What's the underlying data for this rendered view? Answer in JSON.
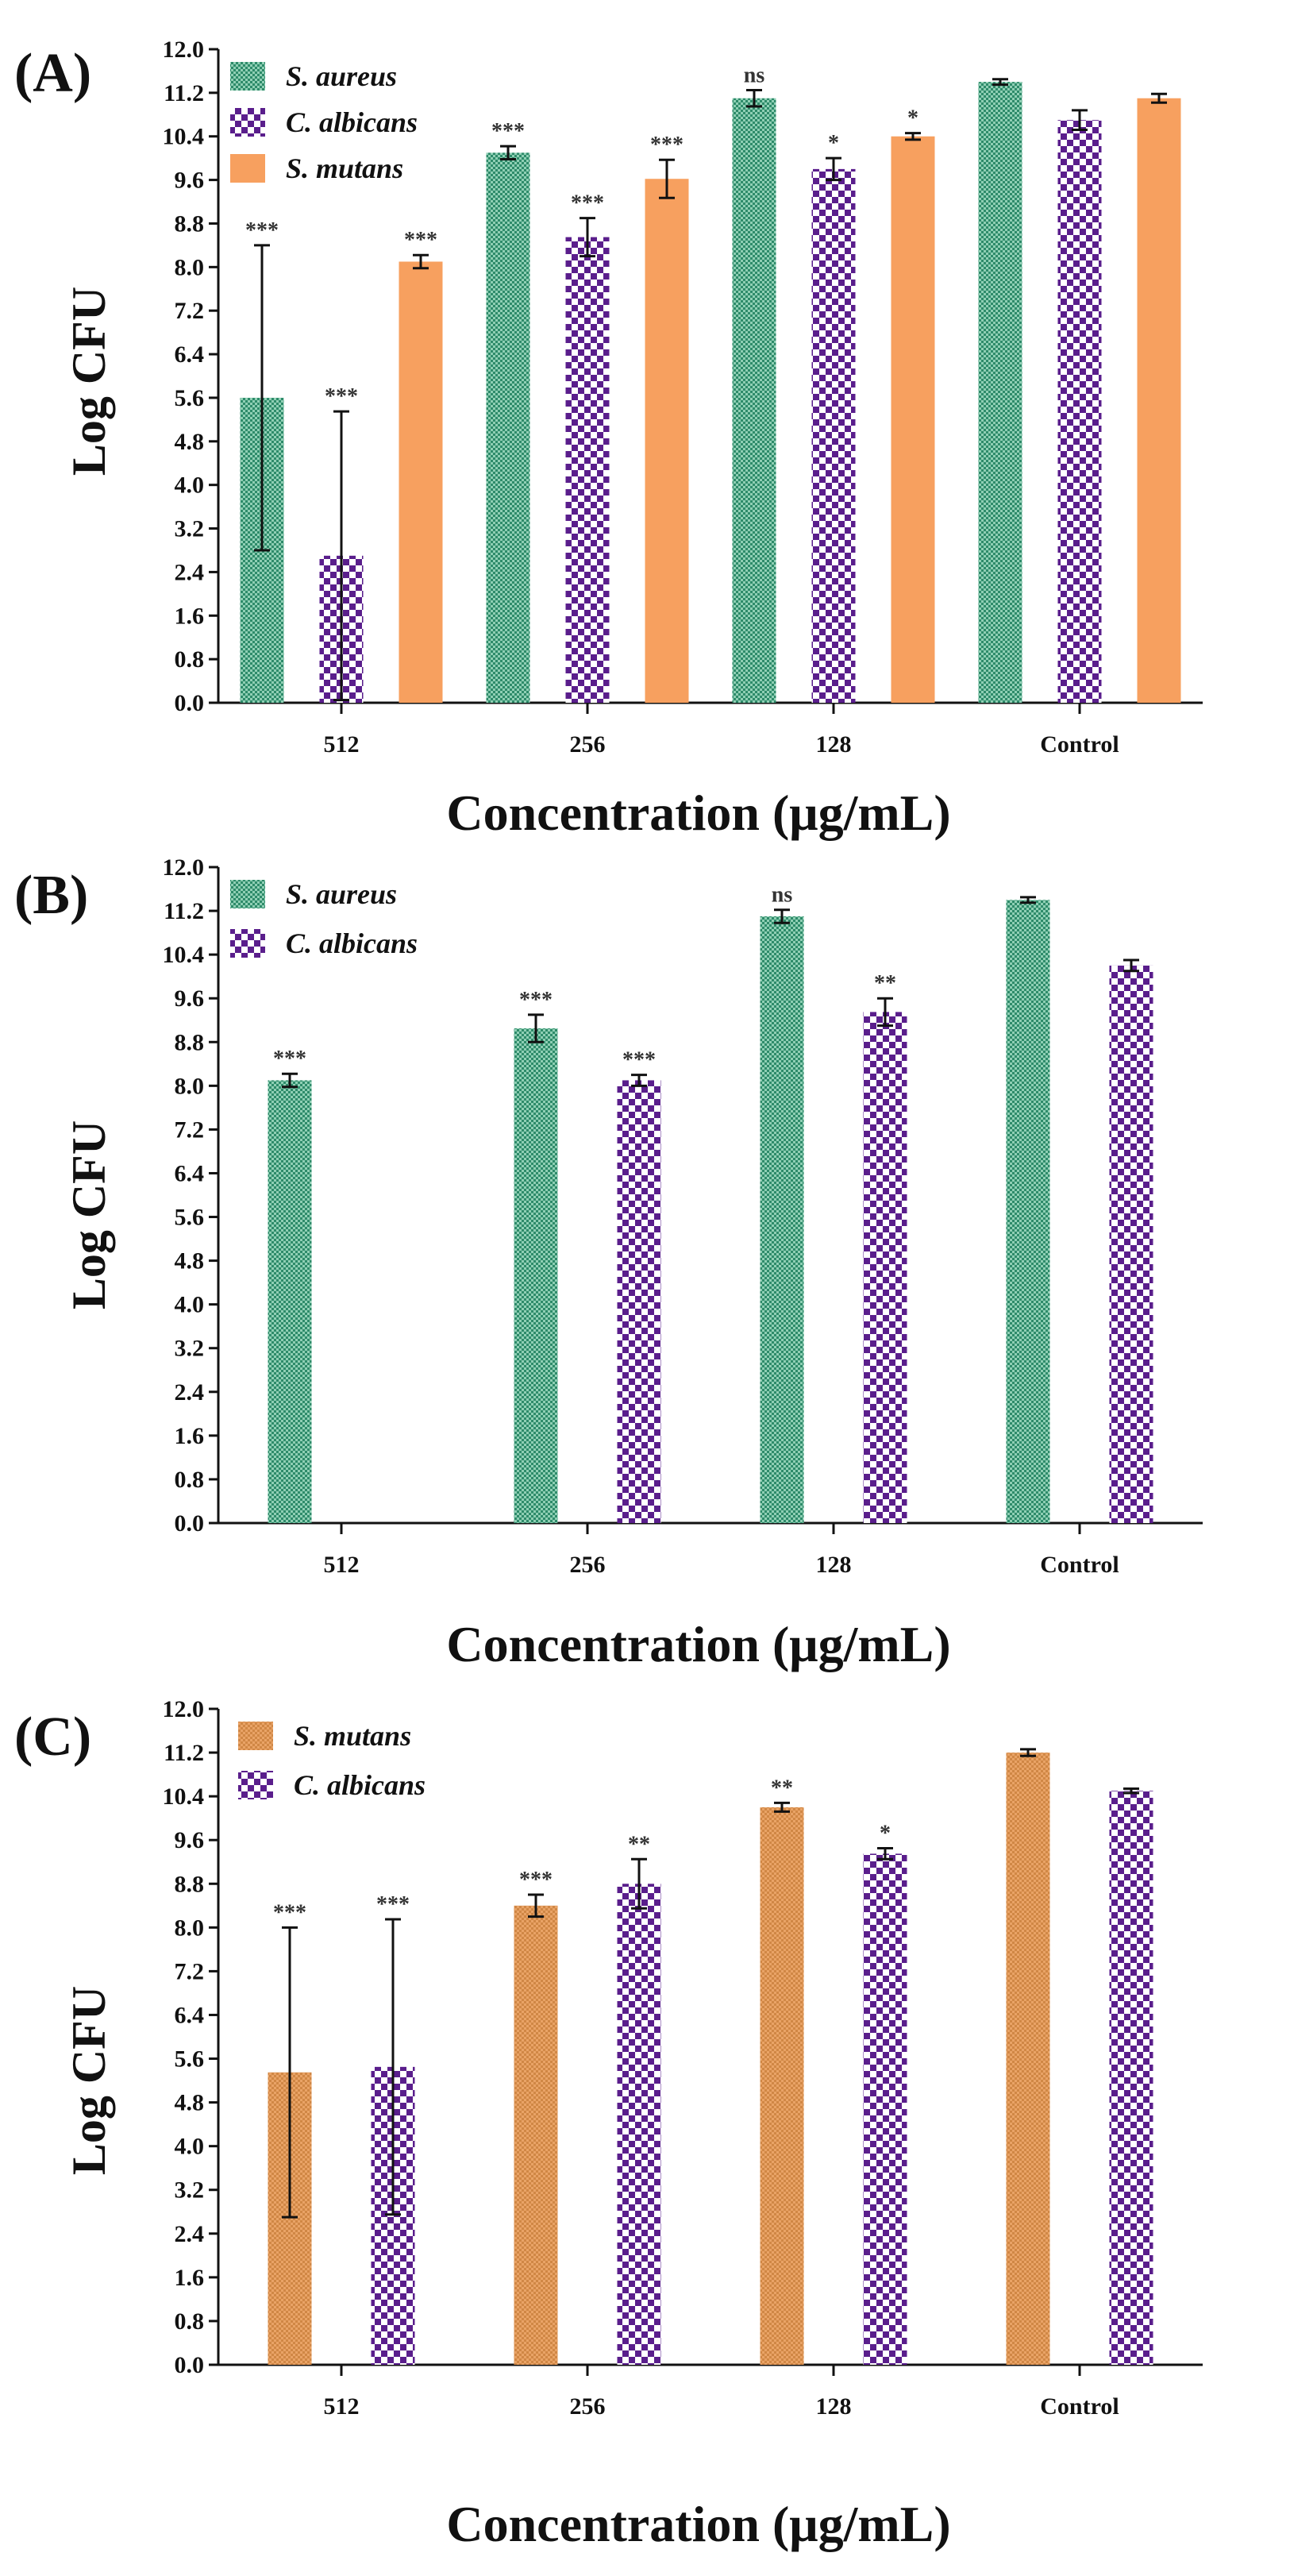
{
  "chart_data": [
    {
      "type": "bar",
      "panel_label": "(A)",
      "ylabel": "Log CFU",
      "xlabel": "Concentration (μg/mL)",
      "ylim": [
        0,
        12
      ],
      "yticks": [
        "0.0",
        "0.8",
        "1.6",
        "2.4",
        "3.2",
        "4.0",
        "4.8",
        "5.6",
        "6.4",
        "7.2",
        "8.0",
        "8.8",
        "9.6",
        "10.4",
        "11.2",
        "12.0"
      ],
      "categories": [
        "512",
        "256",
        "128",
        "Control"
      ],
      "legend_position": "top-left",
      "series": [
        {
          "name": "S. aureus",
          "pattern": "aureus",
          "values": [
            5.6,
            10.1,
            11.1,
            11.4
          ],
          "errors": [
            2.8,
            0.12,
            0.15,
            0.05
          ],
          "sig": [
            "***",
            "***",
            "ns",
            ""
          ]
        },
        {
          "name": "C. albicans",
          "pattern": "albicans",
          "values": [
            2.7,
            8.55,
            9.8,
            10.7
          ],
          "errors": [
            2.65,
            0.35,
            0.2,
            0.18
          ],
          "sig": [
            "***",
            "***",
            "*",
            ""
          ]
        },
        {
          "name": "S. mutans",
          "pattern": "mutansA",
          "values": [
            8.1,
            9.62,
            10.4,
            11.1
          ],
          "errors": [
            0.12,
            0.35,
            0.06,
            0.08
          ],
          "sig": [
            "***",
            "***",
            "*",
            ""
          ]
        }
      ]
    },
    {
      "type": "bar",
      "panel_label": "(B)",
      "ylabel": "Log CFU",
      "xlabel": "Concentration (μg/mL)",
      "ylim": [
        0,
        12
      ],
      "yticks": [
        "0.0",
        "0.8",
        "1.6",
        "2.4",
        "3.2",
        "4.0",
        "4.8",
        "5.6",
        "6.4",
        "7.2",
        "8.0",
        "8.8",
        "9.6",
        "10.4",
        "11.2",
        "12.0"
      ],
      "categories": [
        "512",
        "256",
        "128",
        "Control"
      ],
      "legend_position": "top-left",
      "series": [
        {
          "name": "S. aureus",
          "pattern": "aureus",
          "values": [
            8.1,
            9.05,
            11.1,
            11.4
          ],
          "errors": [
            0.12,
            0.25,
            0.12,
            0.05
          ],
          "sig": [
            "***",
            "***",
            "ns",
            ""
          ]
        },
        {
          "name": "C. albicans",
          "pattern": "albicans",
          "values": [
            0,
            8.1,
            9.35,
            10.2
          ],
          "errors": [
            0,
            0.1,
            0.25,
            0.1
          ],
          "sig": [
            "",
            "***",
            "**",
            ""
          ]
        }
      ]
    },
    {
      "type": "bar",
      "panel_label": "(C)",
      "ylabel": "Log CFU",
      "xlabel": "Concentration (μg/mL)",
      "ylim": [
        0,
        12
      ],
      "yticks": [
        "0.0",
        "0.8",
        "1.6",
        "2.4",
        "3.2",
        "4.0",
        "4.8",
        "5.6",
        "6.4",
        "7.2",
        "8.0",
        "8.8",
        "9.6",
        "10.4",
        "11.2",
        "12.0"
      ],
      "categories": [
        "512",
        "256",
        "128",
        "Control"
      ],
      "legend_position": "top-left",
      "series": [
        {
          "name": "S. mutans",
          "pattern": "mutansC",
          "values": [
            5.35,
            8.4,
            10.2,
            11.2
          ],
          "errors": [
            2.65,
            0.2,
            0.08,
            0.06
          ],
          "sig": [
            "***",
            "***",
            "**",
            ""
          ]
        },
        {
          "name": "C. albicans",
          "pattern": "albicans",
          "values": [
            5.45,
            8.8,
            9.35,
            10.5
          ],
          "errors": [
            2.7,
            0.45,
            0.1,
            0.04
          ],
          "sig": [
            "***",
            "**",
            "*",
            ""
          ]
        }
      ]
    }
  ],
  "colors": {
    "aureus_bg": "#2e8b6a",
    "aureus_fg": "#c9e8da",
    "albicans_bg": "#ffffff",
    "albicans_fg": "#5a1e8c",
    "mutansA": "#f7a05f",
    "mutansC_bg": "#e9a366",
    "mutansC_fg": "#c9783a"
  }
}
